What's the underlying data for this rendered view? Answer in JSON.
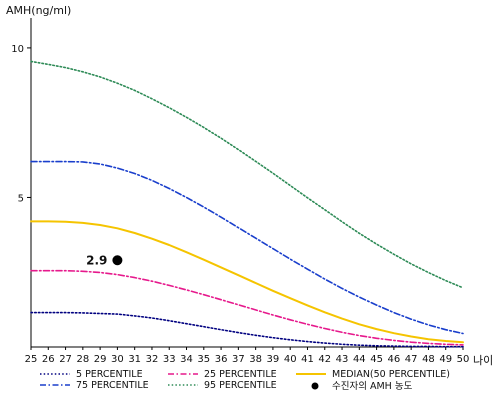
{
  "chart_data": {
    "type": "line",
    "ylabel": "AMH(ng/ml)",
    "xlabel": "나이",
    "x": [
      25,
      26,
      27,
      28,
      29,
      30,
      31,
      32,
      33,
      34,
      35,
      36,
      37,
      38,
      39,
      40,
      41,
      42,
      43,
      44,
      45,
      46,
      47,
      48,
      49,
      50
    ],
    "xlim": [
      25,
      50
    ],
    "ylim": [
      0,
      11
    ],
    "yticks": [
      5,
      10
    ],
    "series": [
      {
        "name": "5 PERCENTILE",
        "color": "#000080",
        "dash": "dot",
        "values": [
          1.15,
          1.15,
          1.15,
          1.14,
          1.12,
          1.1,
          1.04,
          0.97,
          0.88,
          0.78,
          0.68,
          0.58,
          0.48,
          0.39,
          0.31,
          0.24,
          0.18,
          0.13,
          0.09,
          0.06,
          0.04,
          0.03,
          0.02,
          0.02,
          0.01,
          0.01
        ]
      },
      {
        "name": "25 PERCENTILE",
        "color": "#e6198c",
        "dash": "dashdot",
        "values": [
          2.55,
          2.55,
          2.55,
          2.53,
          2.49,
          2.42,
          2.32,
          2.2,
          2.06,
          1.91,
          1.75,
          1.58,
          1.41,
          1.24,
          1.07,
          0.91,
          0.76,
          0.62,
          0.49,
          0.38,
          0.29,
          0.22,
          0.16,
          0.12,
          0.09,
          0.07
        ]
      },
      {
        "name": "MEDIAN(50 PERCENTILE)",
        "color": "#f5c400",
        "dash": "solid",
        "values": [
          4.2,
          4.2,
          4.19,
          4.15,
          4.08,
          3.97,
          3.81,
          3.62,
          3.41,
          3.17,
          2.92,
          2.66,
          2.4,
          2.14,
          1.88,
          1.63,
          1.39,
          1.16,
          0.95,
          0.76,
          0.6,
          0.46,
          0.35,
          0.26,
          0.2,
          0.16
        ]
      },
      {
        "name": "75 PERCENTILE",
        "color": "#1a3fcc",
        "dash": "dashdot",
        "values": [
          6.2,
          6.2,
          6.2,
          6.19,
          6.12,
          5.98,
          5.8,
          5.57,
          5.3,
          5.0,
          4.68,
          4.34,
          3.99,
          3.64,
          3.29,
          2.94,
          2.6,
          2.27,
          1.96,
          1.67,
          1.4,
          1.15,
          0.93,
          0.74,
          0.58,
          0.45
        ]
      },
      {
        "name": "95 PERCENTILE",
        "color": "#2e8b57",
        "dash": "dot",
        "values": [
          9.55,
          9.45,
          9.34,
          9.2,
          9.03,
          8.82,
          8.58,
          8.3,
          8.0,
          7.68,
          7.34,
          6.98,
          6.6,
          6.21,
          5.81,
          5.4,
          4.99,
          4.59,
          4.19,
          3.8,
          3.44,
          3.1,
          2.78,
          2.49,
          2.22,
          1.98
        ]
      }
    ],
    "marker": {
      "name": "수진자의 AMH 농도",
      "x": 30,
      "y": 2.9,
      "label": "2.9",
      "color": "#000000"
    },
    "legend_position": "bottom",
    "grid": false
  }
}
